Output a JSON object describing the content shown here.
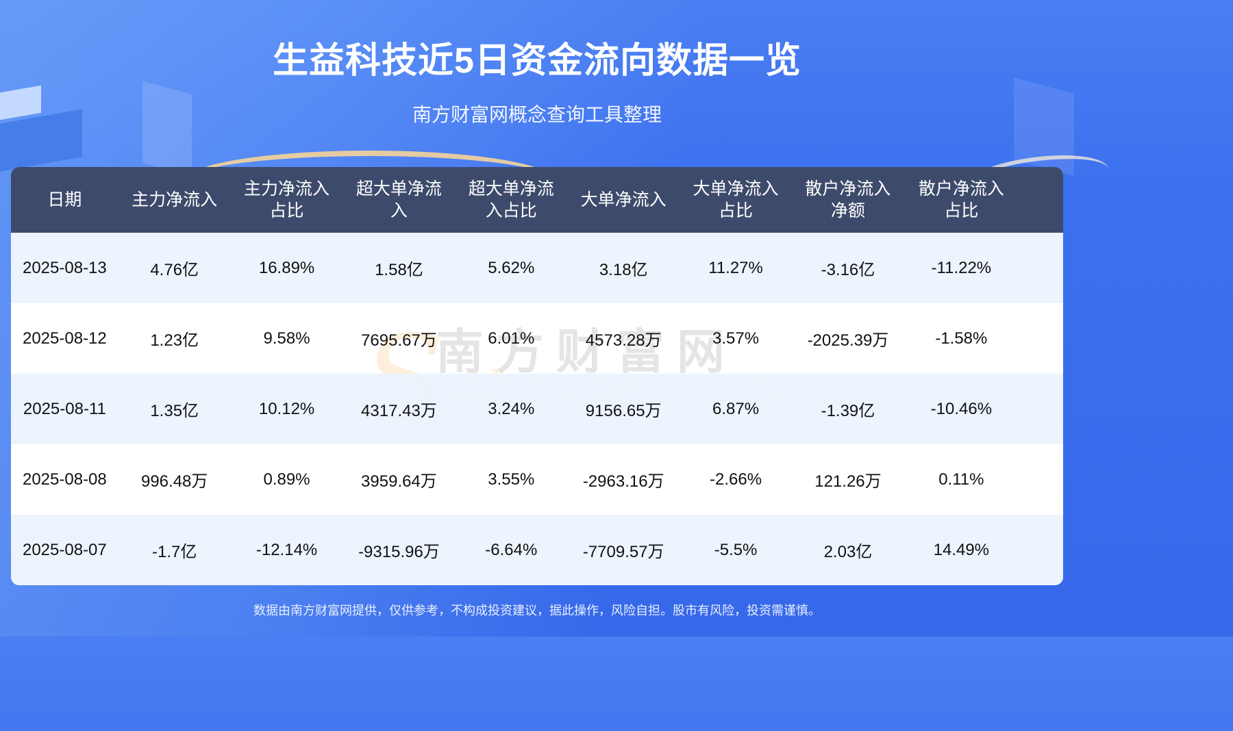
{
  "header": {
    "title": "生益科技近5日资金流向数据一览",
    "subtitle": "南方财富网概念查询工具整理"
  },
  "table": {
    "columns": [
      {
        "line1": "日期",
        "line2": ""
      },
      {
        "line1": "主力净流入",
        "line2": ""
      },
      {
        "line1": "主力净流入",
        "line2": "占比"
      },
      {
        "line1": "超大单净流",
        "line2": "入"
      },
      {
        "line1": "超大单净流",
        "line2": "入占比"
      },
      {
        "line1": "大单净流入",
        "line2": ""
      },
      {
        "line1": "大单净流入",
        "line2": "占比"
      },
      {
        "line1": "散户净流入",
        "line2": "净额"
      },
      {
        "line1": "散户净流入",
        "line2": "占比"
      }
    ],
    "rows": [
      [
        "2025-08-13",
        "4.76亿",
        "16.89%",
        "1.58亿",
        "5.62%",
        "3.18亿",
        "11.27%",
        "-3.16亿",
        "-11.22%"
      ],
      [
        "2025-08-12",
        "1.23亿",
        "9.58%",
        "7695.67万",
        "6.01%",
        "4573.28万",
        "3.57%",
        "-2025.39万",
        "-1.58%"
      ],
      [
        "2025-08-11",
        "1.35亿",
        "10.12%",
        "4317.43万",
        "3.24%",
        "9156.65万",
        "6.87%",
        "-1.39亿",
        "-10.46%"
      ],
      [
        "2025-08-08",
        "996.48万",
        "0.89%",
        "3959.64万",
        "3.55%",
        "-2963.16万",
        "-2.66%",
        "121.26万",
        "0.11%"
      ],
      [
        "2025-08-07",
        "-1.7亿",
        "-12.14%",
        "-9315.96万",
        "-6.64%",
        "-7709.57万",
        "-5.5%",
        "2.03亿",
        "14.49%"
      ]
    ]
  },
  "watermark": {
    "cn": "南方财富网",
    "letter": "S",
    "en": "outhmoney.com"
  },
  "footer": {
    "disclaimer": "数据由南方财富网提供，仅供参考，不构成投资建议，据此操作，风险自担。股市有风险，投资需谨慎。"
  },
  "colors": {
    "background": "#3d70ee",
    "header_row": "#3d4a6b",
    "row_alt": "#eaf3fd",
    "row_plain": "#ffffff"
  }
}
